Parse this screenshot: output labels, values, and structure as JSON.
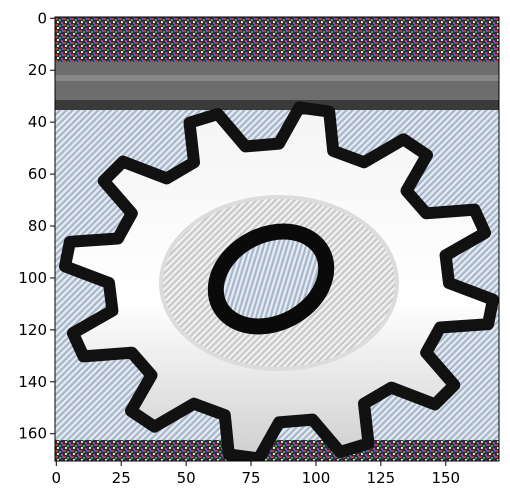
{
  "figure": {
    "x_ticks": [
      "0",
      "25",
      "50",
      "75",
      "100",
      "125",
      "150"
    ],
    "y_ticks": [
      "0",
      "20",
      "40",
      "60",
      "80",
      "100",
      "120",
      "140",
      "160"
    ],
    "image_icon": "gear-icon"
  }
}
